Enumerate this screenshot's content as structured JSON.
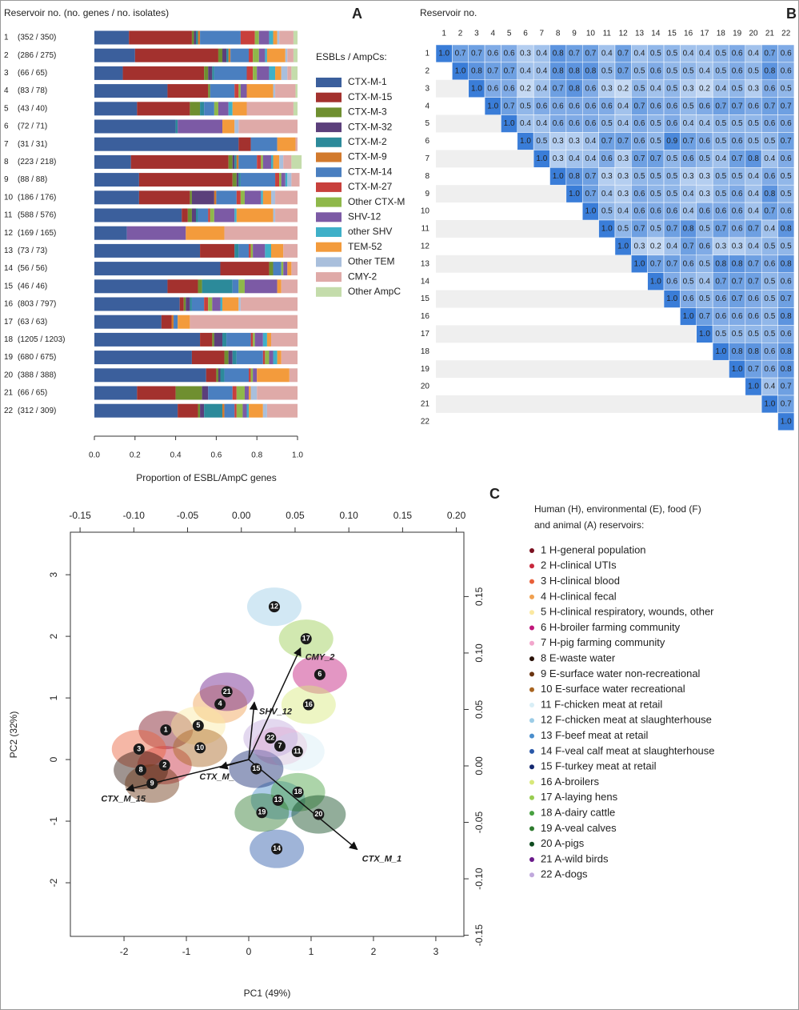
{
  "chart_data": [
    {
      "type": "bar",
      "orientation": "horizontal",
      "stacked": true,
      "panel": "A",
      "header": "Reservoir no. (no. genes / no. isolates)",
      "xlabel": "Proportion of ESBL/AmpC genes",
      "legend_title": "ESBLs / AmpCs:",
      "categories": [
        "1",
        "2",
        "3",
        "4",
        "5",
        "6",
        "7",
        "8",
        "9",
        "10",
        "11",
        "12",
        "13",
        "14",
        "15",
        "16",
        "17",
        "18",
        "19",
        "20",
        "21",
        "22"
      ],
      "row_labels": [
        "(352 / 350)",
        "(286 / 275)",
        "(66 / 65)",
        "(83 / 78)",
        "(43 / 40)",
        "(72 / 71)",
        "(31 / 31)",
        "(223 / 218)",
        "(88 / 88)",
        "(186 / 176)",
        "(588 / 576)",
        "(169 / 165)",
        "(73 / 73)",
        "(56 / 56)",
        "(46 / 46)",
        "(803 / 797)",
        "(63 / 63)",
        "(1205 / 1203)",
        "(680 / 675)",
        "(388 / 388)",
        "(66 / 65)",
        "(312 / 309)"
      ],
      "xlim": [
        0,
        1
      ],
      "xticks": [
        {
          "value": 0,
          "label": "0.0"
        },
        0.2,
        0.4,
        0.6,
        0.8,
        {
          "value": 1,
          "label": "1.0"
        }
      ],
      "series": [
        {
          "name": "CTX-M-1",
          "color": "#3b5f9c",
          "values": [
            0.17,
            0.2,
            0.14,
            0.36,
            0.21,
            0.4,
            0.71,
            0.18,
            0.22,
            0.22,
            0.43,
            0.16,
            0.52,
            0.62,
            0.36,
            0.42,
            0.33,
            0.52,
            0.48,
            0.55,
            0.21,
            0.41
          ]
        },
        {
          "name": "CTX-M-15",
          "color": "#a3312e",
          "values": [
            0.31,
            0.41,
            0.4,
            0.2,
            0.26,
            0,
            0.06,
            0.48,
            0.46,
            0.25,
            0.03,
            0,
            0.17,
            0.24,
            0.15,
            0.02,
            0.05,
            0.06,
            0.16,
            0.05,
            0.19,
            0.1
          ]
        },
        {
          "name": "CTX-M-3",
          "color": "#6f8f30",
          "values": [
            0.01,
            0.02,
            0.02,
            0.01,
            0.05,
            0,
            0,
            0.02,
            0.02,
            0.01,
            0.02,
            0,
            0,
            0.02,
            0.02,
            0.01,
            0,
            0.01,
            0.02,
            0.01,
            0.13,
            0.01
          ]
        },
        {
          "name": "CTX-M-32",
          "color": "#5b3f7b",
          "values": [
            0.01,
            0.02,
            0.02,
            0,
            0,
            0,
            0,
            0.01,
            0.01,
            0.11,
            0.02,
            0,
            0,
            0,
            0,
            0.02,
            0,
            0.04,
            0.02,
            0.01,
            0.03,
            0.02
          ]
        },
        {
          "name": "CTX-M-2",
          "color": "#2c8a9a",
          "values": [
            0.01,
            0.01,
            0.01,
            0,
            0.02,
            0.01,
            0,
            0.01,
            0.01,
            0,
            0.01,
            0,
            0.02,
            0,
            0.15,
            0.01,
            0,
            0.02,
            0.02,
            0.02,
            0,
            0.09
          ]
        },
        {
          "name": "CTX-M-9",
          "color": "#d27a2d",
          "values": [
            0.01,
            0.01,
            0,
            0,
            0,
            0,
            0,
            0.01,
            0,
            0.01,
            0,
            0,
            0,
            0,
            0,
            0,
            0.01,
            0,
            0,
            0,
            0,
            0.01
          ]
        },
        {
          "name": "CTX-M-14",
          "color": "#4a7fc0",
          "values": [
            0.2,
            0.09,
            0.16,
            0.12,
            0.05,
            0,
            0.13,
            0.09,
            0.17,
            0.1,
            0.05,
            0,
            0.05,
            0.04,
            0.03,
            0.06,
            0.02,
            0.12,
            0.13,
            0.12,
            0.12,
            0.05
          ]
        },
        {
          "name": "CTX-M-27",
          "color": "#c8403c",
          "values": [
            0.07,
            0.02,
            0.03,
            0.02,
            0,
            0,
            0,
            0.02,
            0.02,
            0.02,
            0.01,
            0,
            0.01,
            0,
            0,
            0.02,
            0,
            0.01,
            0.01,
            0.01,
            0.02,
            0.01
          ]
        },
        {
          "name": "Other CTX-M",
          "color": "#8fb84a",
          "values": [
            0.02,
            0.03,
            0.02,
            0.01,
            0.02,
            0,
            0,
            0.01,
            0.01,
            0.02,
            0.02,
            0,
            0.01,
            0.01,
            0.03,
            0.02,
            0,
            0.01,
            0.02,
            0.01,
            0.04,
            0.03
          ]
        },
        {
          "name": "SHV-12",
          "color": "#7c5aa5",
          "values": [
            0.05,
            0.03,
            0.06,
            0.03,
            0.05,
            0.22,
            0,
            0.04,
            0.02,
            0.08,
            0.1,
            0.29,
            0.06,
            0.02,
            0.16,
            0.04,
            0,
            0.04,
            0.02,
            0.02,
            0.02,
            0.02
          ]
        },
        {
          "name": "other SHV",
          "color": "#3fb0c8",
          "values": [
            0.02,
            0.01,
            0.03,
            0,
            0.02,
            0,
            0,
            0.01,
            0.01,
            0.01,
            0.01,
            0,
            0.03,
            0,
            0,
            0.01,
            0,
            0.02,
            0.02,
            0,
            0,
            0.01
          ]
        },
        {
          "name": "TEM-52",
          "color": "#f39b3c",
          "values": [
            0.02,
            0.09,
            0.03,
            0.13,
            0.07,
            0.06,
            0.09,
            0.03,
            0,
            0.04,
            0.18,
            0.19,
            0.06,
            0.02,
            0.02,
            0.08,
            0.06,
            0.02,
            0.02,
            0.16,
            0.01,
            0.07
          ]
        },
        {
          "name": "Other TEM",
          "color": "#a9bfdc",
          "values": [
            0.01,
            0.01,
            0.03,
            0.01,
            0,
            0.02,
            0,
            0.02,
            0.02,
            0.02,
            0.01,
            0,
            0,
            0,
            0,
            0.01,
            0,
            0,
            0,
            0,
            0.03,
            0.02
          ]
        },
        {
          "name": "CMY-2",
          "color": "#dfaaa8",
          "values": [
            0.07,
            0.03,
            0.02,
            0.1,
            0.23,
            0.29,
            0.01,
            0.04,
            0.04,
            0.11,
            0.11,
            0.36,
            0.07,
            0.03,
            0.08,
            0.28,
            0.53,
            0.13,
            0.08,
            0.04,
            0.2,
            0.15
          ]
        },
        {
          "name": "Other AmpC",
          "color": "#c4dcab",
          "values": [
            0.02,
            0.02,
            0.03,
            0.01,
            0.02,
            0,
            0,
            0.05,
            0,
            0,
            0,
            0,
            0,
            0,
            0,
            0,
            0,
            0,
            0,
            0,
            0,
            0
          ]
        }
      ]
    },
    {
      "type": "heatmap",
      "panel": "B",
      "header": "Reservoir no.",
      "categories": [
        "1",
        "2",
        "3",
        "4",
        "5",
        "6",
        "7",
        "8",
        "9",
        "10",
        "11",
        "12",
        "13",
        "14",
        "15",
        "16",
        "17",
        "18",
        "19",
        "20",
        "21",
        "22"
      ],
      "low_color": "#e8f0fa",
      "high_color": "#3a7dd8",
      "values": [
        [
          1,
          0.7,
          0.7,
          0.6,
          0.6,
          0.3,
          0.4,
          0.8,
          0.7,
          0.7,
          0.4,
          0.7,
          0.4,
          0.5,
          0.5,
          0.4,
          0.4,
          0.5,
          0.6,
          0.4,
          0.7,
          0.6
        ],
        [
          1,
          0.8,
          0.7,
          0.7,
          0.4,
          0.4,
          0.8,
          0.8,
          0.8,
          0.5,
          0.7,
          0.5,
          0.6,
          0.5,
          0.5,
          0.4,
          0.5,
          0.6,
          0.5,
          0.8,
          0.6
        ],
        [
          1,
          0.6,
          0.6,
          0.2,
          0.4,
          0.7,
          0.8,
          0.6,
          0.3,
          0.2,
          0.5,
          0.4,
          0.5,
          0.3,
          0.2,
          0.4,
          0.5,
          0.3,
          0.6,
          0.5
        ],
        [
          1,
          0.7,
          0.5,
          0.6,
          0.6,
          0.6,
          0.6,
          0.6,
          0.4,
          0.7,
          0.6,
          0.6,
          0.5,
          0.6,
          0.7,
          0.7,
          0.6,
          0.7,
          0.7
        ],
        [
          1,
          0.4,
          0.4,
          0.6,
          0.6,
          0.6,
          0.5,
          0.4,
          0.6,
          0.5,
          0.6,
          0.4,
          0.4,
          0.5,
          0.5,
          0.5,
          0.6,
          0.6
        ],
        [
          1,
          0.5,
          0.3,
          0.3,
          0.4,
          0.7,
          0.7,
          0.6,
          0.5,
          0.9,
          0.7,
          0.6,
          0.5,
          0.6,
          0.5,
          0.5,
          0.7
        ],
        [
          1,
          0.3,
          0.4,
          0.4,
          0.6,
          0.3,
          0.7,
          0.7,
          0.5,
          0.6,
          0.5,
          0.4,
          0.7,
          0.8,
          0.4,
          0.6
        ],
        [
          1,
          0.8,
          0.7,
          0.3,
          0.3,
          0.5,
          0.5,
          0.5,
          0.3,
          0.3,
          0.5,
          0.5,
          0.4,
          0.6,
          0.5
        ],
        [
          1,
          0.7,
          0.4,
          0.3,
          0.6,
          0.5,
          0.5,
          0.4,
          0.3,
          0.5,
          0.6,
          0.4,
          0.8,
          0.5
        ],
        [
          1,
          0.5,
          0.4,
          0.6,
          0.6,
          0.6,
          0.4,
          0.6,
          0.6,
          0.6,
          0.4,
          0.7,
          0.6
        ],
        [
          1,
          0.5,
          0.7,
          0.5,
          0.7,
          0.8,
          0.5,
          0.7,
          0.6,
          0.7,
          0.4,
          0.8
        ],
        [
          1,
          0.3,
          0.2,
          0.4,
          0.7,
          0.6,
          0.3,
          0.3,
          0.4,
          0.5,
          0.5
        ],
        [
          1,
          0.7,
          0.7,
          0.6,
          0.5,
          0.8,
          0.8,
          0.7,
          0.6,
          0.8
        ],
        [
          1,
          0.6,
          0.5,
          0.4,
          0.7,
          0.7,
          0.7,
          0.5,
          0.6
        ],
        [
          1,
          0.6,
          0.5,
          0.6,
          0.7,
          0.6,
          0.5,
          0.7
        ],
        [
          1,
          0.7,
          0.6,
          0.6,
          0.6,
          0.5,
          0.8
        ],
        [
          1,
          0.5,
          0.5,
          0.5,
          0.5,
          0.6
        ],
        [
          1,
          0.8,
          0.8,
          0.6,
          0.8
        ],
        [
          1,
          0.7,
          0.6,
          0.8
        ],
        [
          1,
          0.4,
          0.7
        ],
        [
          1,
          0.7
        ],
        [
          1
        ]
      ],
      "diagonal_value_labels": [
        "1.0",
        "1.0",
        "1.0",
        "1.0",
        "1.0",
        "1.0",
        "1.0",
        "1.0",
        "1.0",
        "1.0",
        "1.0",
        "1.0",
        "1.0",
        "1.0",
        "1.0",
        "1.0",
        "1.0",
        "1.0",
        "1.0",
        "1.0",
        "1.0",
        "1.0"
      ]
    },
    {
      "type": "scatter",
      "panel": "C",
      "xlabel": "PC1  (49%)",
      "ylabel": "PC2  (32%)",
      "legend_title": [
        "Human (H), environmental (E), food (F)",
        "and animal (A) reservoirs:"
      ],
      "xlim": [
        -2.86,
        3.45
      ],
      "ylim": [
        -2.87,
        3.69
      ],
      "xticks": [
        -2,
        -1,
        0,
        1,
        2,
        3
      ],
      "yticks": [
        -2,
        -1,
        0,
        1,
        2,
        3
      ],
      "x2lim": [
        -0.159,
        0.207
      ],
      "y2lim": [
        -0.151,
        0.207
      ],
      "x2ticks": [
        -0.15,
        {
          "value": -0.1,
          "label": "-0.10"
        },
        -0.05,
        {
          "value": 0,
          "label": "0.00"
        },
        0.05,
        {
          "value": 0.1,
          "label": "0.10"
        },
        0.15,
        {
          "value": 0.2,
          "label": "0.20"
        }
      ],
      "y2ticks": [
        -0.15,
        {
          "value": -0.1,
          "label": "-0.10"
        },
        -0.05,
        {
          "value": 0,
          "label": "0.00"
        },
        0.05,
        {
          "value": 0.1,
          "label": "0.10"
        },
        0.15
      ],
      "series": [
        {
          "name": "1 H-general population",
          "label": "1",
          "color": "#7a1020",
          "x": -1.33,
          "y": 0.48
        },
        {
          "name": "2 H-clinical UTIs",
          "label": "2",
          "color": "#c8283c",
          "x": -1.35,
          "y": -0.09
        },
        {
          "name": "3 H-clinical blood",
          "label": "3",
          "color": "#e8603a",
          "x": -1.76,
          "y": 0.17
        },
        {
          "name": "4 H-clinical fecal",
          "label": "4",
          "color": "#f0a050",
          "x": -0.46,
          "y": 0.9
        },
        {
          "name": "5 H-clinical respiratory, wounds, other",
          "label": "5",
          "color": "#fbe8a0",
          "x": -0.81,
          "y": 0.55
        },
        {
          "name": "6 H-broiler farming community",
          "label": "6",
          "color": "#c0167a",
          "x": 1.14,
          "y": 1.38
        },
        {
          "name": "7 H-pig farming community",
          "label": "7",
          "color": "#f2a6cc",
          "x": 0.5,
          "y": 0.22
        },
        {
          "name": "8 E-waste water",
          "label": "8",
          "color": "#2a1208",
          "x": -1.73,
          "y": -0.17
        },
        {
          "name": "9 E-surface water non-recreational",
          "label": "9",
          "color": "#6a3410",
          "x": -1.55,
          "y": -0.39
        },
        {
          "name": "10 E-surface water recreational",
          "label": "10",
          "color": "#a86420",
          "x": -0.78,
          "y": 0.19
        },
        {
          "name": "11 F-chicken meat at retail",
          "label": "11",
          "color": "#d8eef6",
          "x": 0.78,
          "y": 0.13
        },
        {
          "name": "12 F-chicken meat at slaughterhouse",
          "label": "12",
          "color": "#9ccce6",
          "x": 0.41,
          "y": 2.48
        },
        {
          "name": "13 F-beef meat at retail",
          "label": "13",
          "color": "#4a8ecc",
          "x": 0.47,
          "y": -0.66
        },
        {
          "name": "14 F-veal calf meat at slaughterhouse",
          "label": "14",
          "color": "#2a58a8",
          "x": 0.45,
          "y": -1.45
        },
        {
          "name": "15 F-turkey meat at retail",
          "label": "15",
          "color": "#142870",
          "x": 0.12,
          "y": -0.15
        },
        {
          "name": "16 A-broilers",
          "label": "16",
          "color": "#d8e87a",
          "x": 0.96,
          "y": 0.89
        },
        {
          "name": "17 A-laying hens",
          "label": "17",
          "color": "#98cc50",
          "x": 0.92,
          "y": 1.96
        },
        {
          "name": "18 A-dairy cattle",
          "label": "18",
          "color": "#48a040",
          "x": 0.79,
          "y": -0.53
        },
        {
          "name": "19 A-veal calves",
          "label": "19",
          "color": "#2e7a2e",
          "x": 0.21,
          "y": -0.86
        },
        {
          "name": "20 A-pigs",
          "label": "20",
          "color": "#0e4a1e",
          "x": 1.12,
          "y": -0.89
        },
        {
          "name": "21 A-wild birds",
          "label": "21",
          "color": "#6a1a8a",
          "x": -0.35,
          "y": 1.1
        },
        {
          "name": "22 A-dogs",
          "label": "22",
          "color": "#c0a8dc",
          "x": 0.35,
          "y": 0.35
        }
      ],
      "vectors": [
        {
          "name": "CMY_2",
          "x": 0.83,
          "y": 1.81
        },
        {
          "name": "SHV_12",
          "x": 0.09,
          "y": 0.93
        },
        {
          "name": "CTX_M_1",
          "x": 1.74,
          "y": -1.46
        },
        {
          "name": "CTX_M_15",
          "x": -1.96,
          "y": -0.49
        },
        {
          "name": "CTX_M_",
          "x": -0.46,
          "y": -0.13
        }
      ]
    }
  ]
}
